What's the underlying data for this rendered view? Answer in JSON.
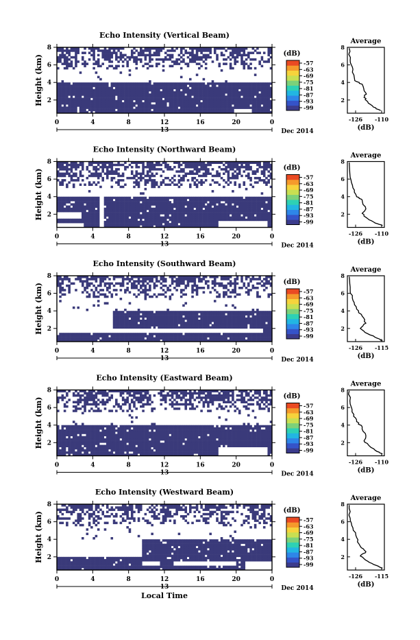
{
  "figure": {
    "x_axis_label": "Local Time",
    "date_label": "Dec 2014",
    "colorbar_unit": "(dB)",
    "profile_title": "Average",
    "profile_xlabel": "(dB)",
    "y_axis_label": "Height (km)",
    "fill_color": "#3a3a7a",
    "colorbar_colors": [
      "#3b3b8c",
      "#3553c8",
      "#2e86e8",
      "#22b6e2",
      "#2ed1b4",
      "#7cd17a",
      "#c8df52",
      "#f6d33c",
      "#f59a2c",
      "#ea4a23"
    ]
  },
  "chart_data": [
    {
      "type": "heatmap",
      "title": "Echo Intensity (Vertical Beam)",
      "xlabel": "",
      "ylabel": "Height (km)",
      "x_ticks": [
        "0",
        "4",
        "8",
        "12",
        "16",
        "20",
        "0"
      ],
      "x_mid_label": "13",
      "xlim": [
        0,
        24
      ],
      "ylim": [
        0.5,
        8
      ],
      "y_ticks": [
        "2",
        "4",
        "6",
        "8"
      ],
      "colorbar": {
        "unit": "(dB)",
        "ticks": [
          "-57",
          "-63",
          "-69",
          "-75",
          "-81",
          "-87",
          "-93",
          "-99"
        ]
      },
      "dense_band_km": [
        0.6,
        3.9
      ],
      "lower_gaps": [
        [
          2.2,
          2.6,
          0.5,
          1.2
        ],
        [
          19.8,
          21.8,
          0.6,
          1.0
        ]
      ],
      "upper_band_km": [
        5.4,
        8.0
      ],
      "average_profile": {
        "title": "Average",
        "xlabel": "(dB)",
        "xticks": [
          "-126",
          "-110"
        ],
        "xlim": [
          -128,
          -108
        ],
        "yticks": [
          "2",
          "4",
          "6",
          "8"
        ],
        "ylim": [
          0.5,
          8
        ],
        "points": [
          [
            -127,
            7.9
          ],
          [
            -126.5,
            6.5
          ],
          [
            -125,
            5.5
          ],
          [
            -124,
            4.2
          ],
          [
            -120,
            3.8
          ],
          [
            -118,
            2.8
          ],
          [
            -119,
            2.3
          ],
          [
            -117,
            1.8
          ],
          [
            -114,
            1.2
          ],
          [
            -110,
            0.8
          ]
        ]
      }
    },
    {
      "type": "heatmap",
      "title": "Echo Intensity (Northward Beam)",
      "xlabel": "",
      "ylabel": "Height (km)",
      "x_ticks": [
        "0",
        "4",
        "8",
        "12",
        "16",
        "20",
        "0"
      ],
      "x_mid_label": "13",
      "xlim": [
        0,
        24
      ],
      "ylim": [
        0.5,
        8
      ],
      "y_ticks": [
        "2",
        "4",
        "6",
        "8"
      ],
      "colorbar": {
        "unit": "(dB)",
        "ticks": [
          "-57",
          "-63",
          "-69",
          "-75",
          "-81",
          "-87",
          "-93",
          "-99"
        ]
      },
      "dense_band_km": [
        0.6,
        3.9
      ],
      "lower_gaps": [
        [
          4.8,
          5.3,
          0.6,
          3.9
        ],
        [
          0.0,
          2.8,
          1.6,
          2.2
        ],
        [
          0.0,
          3.0,
          0.6,
          1.0
        ],
        [
          18.0,
          23.5,
          0.6,
          1.2
        ]
      ],
      "upper_band_km": [
        5.0,
        8.0
      ],
      "average_profile": {
        "title": "Average",
        "xlabel": "(dB)",
        "xticks": [
          "-126",
          "-110"
        ],
        "xlim": [
          -128,
          -108
        ],
        "yticks": [
          "2",
          "4",
          "6",
          "8"
        ],
        "ylim": [
          0.5,
          8
        ],
        "points": [
          [
            -127,
            7.9
          ],
          [
            -126.5,
            6.2
          ],
          [
            -125,
            5.0
          ],
          [
            -123,
            4.0
          ],
          [
            -120,
            3.6
          ],
          [
            -118,
            2.6
          ],
          [
            -120,
            2.1
          ],
          [
            -117,
            1.5
          ],
          [
            -113,
            1.0
          ],
          [
            -109,
            0.7
          ]
        ]
      }
    },
    {
      "type": "heatmap",
      "title": "Echo Intensity (Southward Beam)",
      "xlabel": "",
      "ylabel": "Height (km)",
      "x_ticks": [
        "0",
        "4",
        "8",
        "12",
        "16",
        "20",
        "0"
      ],
      "x_mid_label": "13",
      "xlim": [
        0,
        24
      ],
      "ylim": [
        0.5,
        8
      ],
      "y_ticks": [
        "2",
        "4",
        "6",
        "8"
      ],
      "colorbar": {
        "unit": "(dB)",
        "ticks": [
          "-57",
          "-63",
          "-69",
          "-75",
          "-81",
          "-87",
          "-93",
          "-99"
        ]
      },
      "dense_band_km": [
        0.6,
        3.9
      ],
      "lower_gaps": [
        [
          0.0,
          6.2,
          1.6,
          3.9
        ],
        [
          6.0,
          23.0,
          1.6,
          2.1
        ]
      ],
      "upper_band_km": [
        5.6,
        8.0
      ],
      "average_profile": {
        "title": "Average",
        "xlabel": "(dB)",
        "xticks": [
          "-126",
          "-115"
        ],
        "xlim": [
          -128,
          -108
        ],
        "yticks": [
          "2",
          "4",
          "6",
          "8"
        ],
        "ylim": [
          0.5,
          8
        ],
        "points": [
          [
            -127,
            7.9
          ],
          [
            -126.5,
            6.3
          ],
          [
            -125,
            5.2
          ],
          [
            -123,
            4.2
          ],
          [
            -120,
            3.4
          ],
          [
            -118,
            2.6
          ],
          [
            -121,
            2.0
          ],
          [
            -117,
            1.4
          ],
          [
            -112,
            0.9
          ],
          [
            -109,
            0.6
          ]
        ]
      }
    },
    {
      "type": "heatmap",
      "title": "Echo Intensity (Eastward Beam)",
      "xlabel": "",
      "ylabel": "Height (km)",
      "x_ticks": [
        "0",
        "4",
        "8",
        "12",
        "16",
        "20",
        "0"
      ],
      "x_mid_label": "13",
      "xlim": [
        0,
        24
      ],
      "ylim": [
        0.5,
        8
      ],
      "y_ticks": [
        "2",
        "4",
        "6",
        "8"
      ],
      "colorbar": {
        "unit": "(dB)",
        "ticks": [
          "-57",
          "-63",
          "-69",
          "-75",
          "-81",
          "-87",
          "-93",
          "-99"
        ]
      },
      "dense_band_km": [
        0.6,
        3.9
      ],
      "lower_gaps": [
        [
          18.0,
          23.5,
          0.6,
          1.6
        ]
      ],
      "upper_band_km": [
        5.4,
        8.0
      ],
      "average_profile": {
        "title": "Average",
        "xlabel": "(dB)",
        "xticks": [
          "-126",
          "-110"
        ],
        "xlim": [
          -128,
          -108
        ],
        "yticks": [
          "2",
          "4",
          "6",
          "8"
        ],
        "ylim": [
          0.5,
          8
        ],
        "points": [
          [
            -127,
            7.9
          ],
          [
            -126.5,
            6.4
          ],
          [
            -124.5,
            5.2
          ],
          [
            -123,
            4.4
          ],
          [
            -120,
            3.8
          ],
          [
            -118,
            2.8
          ],
          [
            -119,
            2.2
          ],
          [
            -116,
            1.6
          ],
          [
            -112,
            1.0
          ],
          [
            -109,
            0.7
          ]
        ]
      }
    },
    {
      "type": "heatmap",
      "title": "Echo Intensity (Westward Beam)",
      "xlabel": "Local Time",
      "ylabel": "Height (km)",
      "x_ticks": [
        "0",
        "4",
        "8",
        "12",
        "16",
        "20",
        "0"
      ],
      "x_mid_label": "13",
      "xlim": [
        0,
        24
      ],
      "ylim": [
        0.5,
        8
      ],
      "y_ticks": [
        "2",
        "4",
        "6",
        "8"
      ],
      "colorbar": {
        "unit": "(dB)",
        "ticks": [
          "-57",
          "-63",
          "-69",
          "-75",
          "-81",
          "-87",
          "-93",
          "-99"
        ]
      },
      "dense_band_km": [
        0.6,
        3.9
      ],
      "lower_gaps": [
        [
          0.0,
          9.5,
          2.1,
          3.9
        ],
        [
          9.5,
          11.5,
          1.0,
          1.6
        ],
        [
          13.0,
          20.0,
          1.0,
          1.4
        ],
        [
          21.0,
          24.0,
          0.6,
          1.6
        ]
      ],
      "upper_band_km": [
        5.6,
        8.0
      ],
      "average_profile": {
        "title": "Average",
        "xlabel": "(dB)",
        "xticks": [
          "-126",
          "-115"
        ],
        "xlim": [
          -128,
          -108
        ],
        "yticks": [
          "2",
          "4",
          "6",
          "8"
        ],
        "ylim": [
          0.5,
          8
        ],
        "points": [
          [
            -127,
            7.9
          ],
          [
            -126.5,
            6.4
          ],
          [
            -125,
            5.3
          ],
          [
            -123,
            4.2
          ],
          [
            -121,
            3.2
          ],
          [
            -118,
            2.6
          ],
          [
            -121,
            2.1
          ],
          [
            -117,
            1.5
          ],
          [
            -112,
            1.0
          ],
          [
            -109,
            0.7
          ]
        ]
      }
    }
  ]
}
